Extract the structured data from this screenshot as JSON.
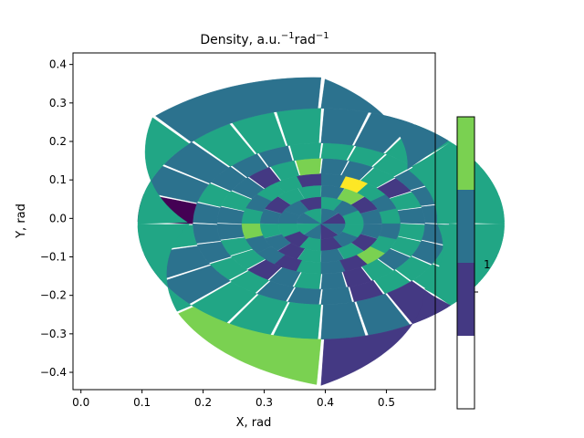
{
  "chart_data": {
    "type": "heatmap",
    "subtype": "polar-segment-mesh",
    "title": "Density, a.u.",
    "title_sup1": "−1",
    "title_mid": "rad",
    "title_sup2": "−1",
    "xlabel": "X, rad",
    "ylabel": "Y, rad",
    "xlim": [
      -0.013,
      0.58
    ],
    "ylim": [
      -0.445,
      0.43
    ],
    "xticks": [
      0.0,
      0.1,
      0.2,
      0.3,
      0.4,
      0.5
    ],
    "xtick_labels": [
      "0.0",
      "0.1",
      "0.2",
      "0.3",
      "0.4",
      "0.5"
    ],
    "yticks": [
      0.4,
      0.3,
      0.2,
      0.1,
      0.0,
      -0.1,
      -0.2,
      -0.3,
      -0.4
    ],
    "ytick_labels": [
      "0.4",
      "0.3",
      "0.2",
      "0.1",
      "0.0",
      "−0.1",
      "−0.2",
      "−0.3",
      "−0.4"
    ],
    "center": [
      0.393,
      -0.014
    ],
    "ring_radii": [
      0.0,
      0.04,
      0.07,
      0.1,
      0.13,
      0.17,
      0.21,
      0.3
    ],
    "outer_boundary": {
      "comment": "outer boundary radius in data units, by angle in degrees",
      "angles": [
        0,
        45,
        90,
        135,
        180,
        225,
        270,
        315,
        360
      ],
      "radii": [
        0.19,
        0.2,
        0.38,
        0.39,
        0.215,
        0.33,
        0.42,
        0.24,
        0.19
      ]
    },
    "sector_counts": [
      8,
      12,
      16,
      20,
      24,
      24,
      24,
      8
    ],
    "level_colors": [
      "#443983",
      "#2c728e",
      "#21a685",
      "#7ad151",
      "#fde725",
      "#440154"
    ],
    "cells": [
      [
        0,
        1,
        2,
        1,
        2,
        1,
        0,
        1
      ],
      [
        2,
        1,
        2,
        0,
        1,
        1,
        2,
        0,
        2,
        0,
        1,
        2
      ],
      [
        1,
        0,
        3,
        1,
        2,
        2,
        0,
        1,
        2,
        1,
        0,
        2,
        1,
        2,
        0,
        1
      ],
      [
        2,
        1,
        2,
        4,
        1,
        0,
        2,
        2,
        1,
        2,
        3,
        1,
        1,
        0,
        2,
        1,
        0,
        3,
        2,
        1
      ],
      [
        1,
        2,
        0,
        2,
        1,
        1,
        3,
        2,
        0,
        1,
        2,
        1,
        1,
        2,
        2,
        0,
        1,
        2,
        1,
        0,
        2,
        1,
        2,
        2
      ],
      [
        1,
        1,
        1,
        2,
        2,
        2,
        2,
        1,
        1,
        1,
        2,
        1,
        1,
        1,
        2,
        2,
        1,
        1,
        1,
        0,
        2,
        2,
        1,
        1
      ],
      [
        2,
        2,
        2,
        2,
        1,
        1,
        2,
        2,
        2,
        1,
        1,
        5,
        2,
        1,
        1,
        2,
        2,
        2,
        1,
        1,
        0,
        2,
        2,
        2
      ],
      [
        2,
        1,
        1,
        2,
        2,
        3,
        0,
        2
      ]
    ],
    "colorbar": {
      "tick_label": "1",
      "levels": [
        {
          "color": "#ffffff"
        },
        {
          "color": "#443983"
        },
        {
          "color": "#2c728e"
        },
        {
          "color": "#7ad151"
        }
      ]
    },
    "grid": false,
    "legend": "none"
  }
}
